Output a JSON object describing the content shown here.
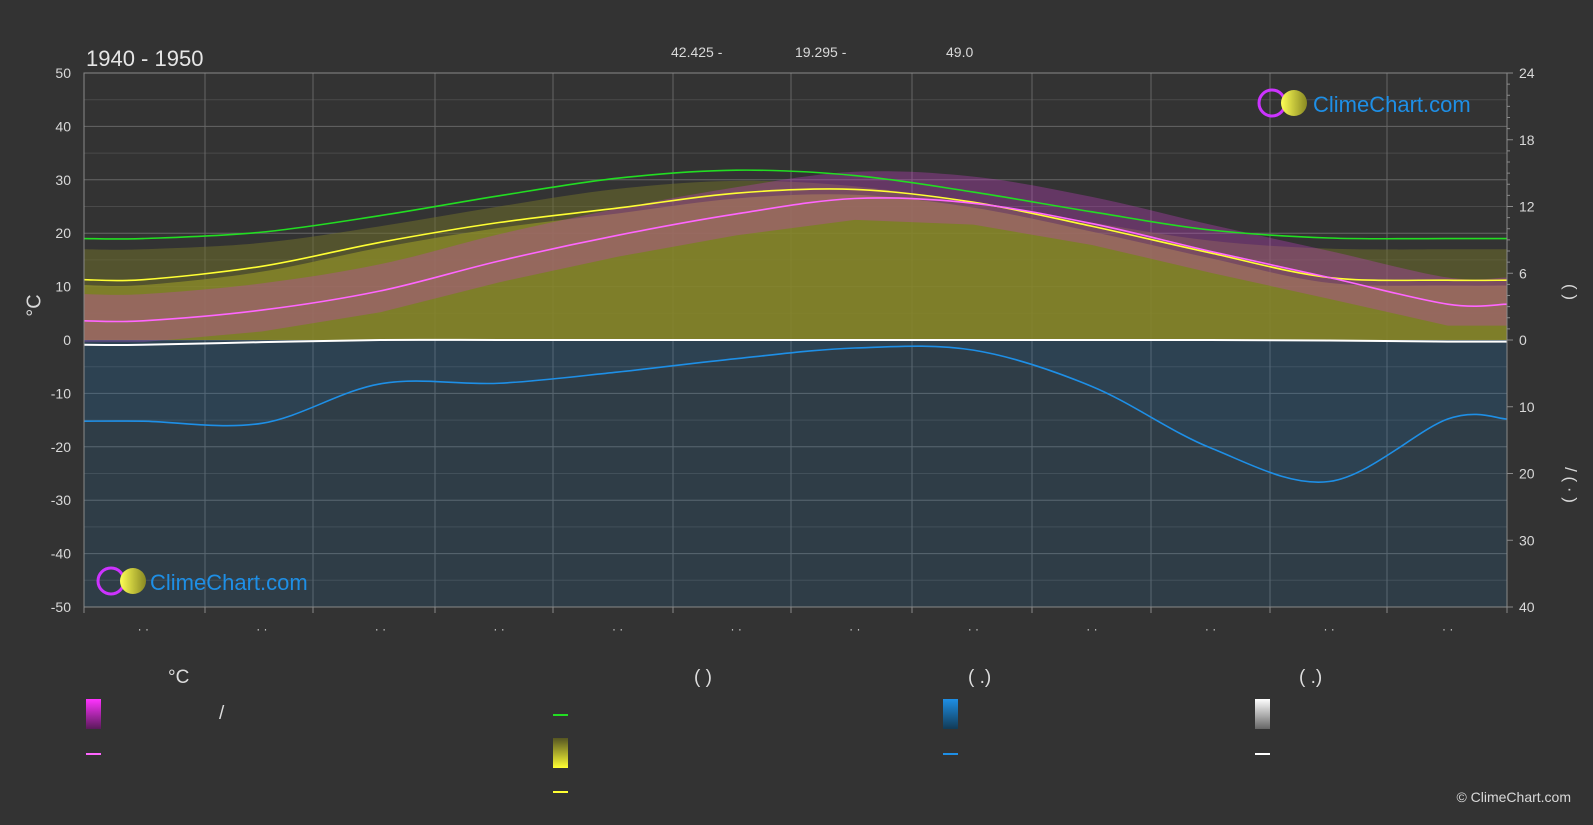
{
  "header": {
    "period": "1940 - 1950",
    "lat": "42.425 -",
    "lon": "19.295 -",
    "elevation": "49.0"
  },
  "colors": {
    "background": "#333333",
    "grid": "#5c5c5c",
    "sunshine_line": "#ffff33",
    "daylight_line": "#22dd22",
    "temp_mean_line": "#ff66ff",
    "rain_line": "#1e8fe6",
    "snow_line": "#ffffff",
    "sunshine_fill": "#8c8c28",
    "temp_range_fill": "#c040c0",
    "rain_fill": "#1f6fa8",
    "brand_text": "#1e8fe6"
  },
  "logo": {
    "text": "ClimeChart.com"
  },
  "chart_data": {
    "type": "line",
    "x_ticks": [
      "· ·",
      "· ·",
      "· ·",
      "· ·",
      "· ·",
      "· ·",
      "· ·",
      "· ·",
      "· ·",
      "· ·",
      "· ·",
      "· ·"
    ],
    "y_left": {
      "label": "°C",
      "range": [
        -50,
        50
      ],
      "ticks": [
        "50",
        "40",
        "30",
        "20",
        "10",
        "0",
        "-10",
        "-20",
        "-30",
        "-40",
        "-50"
      ]
    },
    "y_right_top": {
      "label": "(   )",
      "range": [
        0,
        24
      ],
      "ticks": [
        "24",
        "18",
        "12",
        "6",
        "0"
      ]
    },
    "y_right_bottom": {
      "label": "/ (  ·  )",
      "range": [
        0,
        40
      ],
      "ticks": [
        "0",
        "10",
        "20",
        "30",
        "40"
      ]
    },
    "grid": true,
    "series": [
      {
        "key": "daylight",
        "values": [
          19.0,
          20.2,
          23.3,
          27.0,
          30.3,
          31.8,
          30.8,
          27.7,
          24.0,
          20.6,
          19.1,
          19.0
        ]
      },
      {
        "key": "sunshine",
        "values": [
          11.3,
          13.8,
          18.3,
          22.0,
          24.7,
          27.5,
          28.2,
          25.8,
          21.3,
          16.3,
          11.7,
          11.2
        ]
      },
      {
        "key": "temp_mean",
        "values": [
          3.6,
          5.6,
          9.2,
          14.8,
          19.6,
          23.6,
          26.5,
          25.6,
          21.8,
          16.6,
          11.7,
          6.7
        ]
      },
      {
        "key": "rain",
        "values": [
          -15.2,
          -15.6,
          -8.2,
          -8.1,
          -6.0,
          -3.5,
          -1.5,
          -1.9,
          -8.7,
          -20.2,
          -26.5,
          -14.8
        ]
      },
      {
        "key": "snow",
        "values": [
          -0.9,
          -0.4,
          0.0,
          0.0,
          0.0,
          0.0,
          0.0,
          0.0,
          0.0,
          0.0,
          -0.1,
          -0.3
        ]
      }
    ]
  },
  "legend": {
    "headings": [
      {
        "text": "°C"
      },
      {
        "text": "(          )"
      },
      {
        "text": "(   .)"
      },
      {
        "text": "(   .)"
      }
    ],
    "slash": "/"
  },
  "copyright": "© ClimeChart.com"
}
